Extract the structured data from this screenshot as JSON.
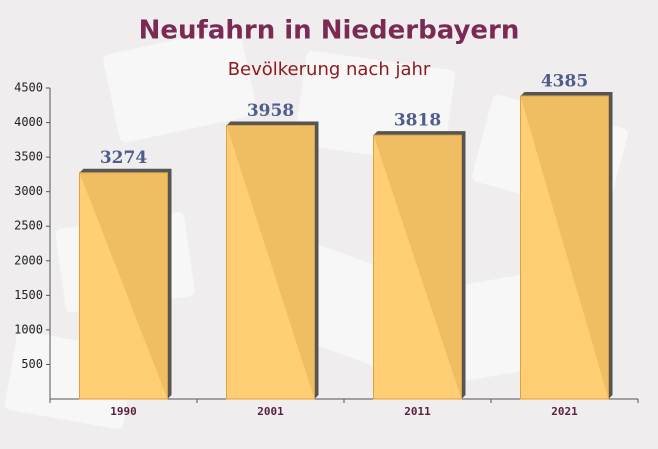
{
  "chart_data": {
    "type": "bar",
    "title": "Neufahrn in Niederbayern",
    "subtitle": "Bevölkerung nach jahr",
    "categories": [
      "1990",
      "2001",
      "2011",
      "2021"
    ],
    "values": [
      3274,
      3958,
      3818,
      4385
    ],
    "color": "#ffc966",
    "ylim": [
      0,
      4500
    ],
    "yticks": [
      500,
      1000,
      1500,
      2000,
      2500,
      3000,
      3500,
      4000,
      4500
    ]
  }
}
